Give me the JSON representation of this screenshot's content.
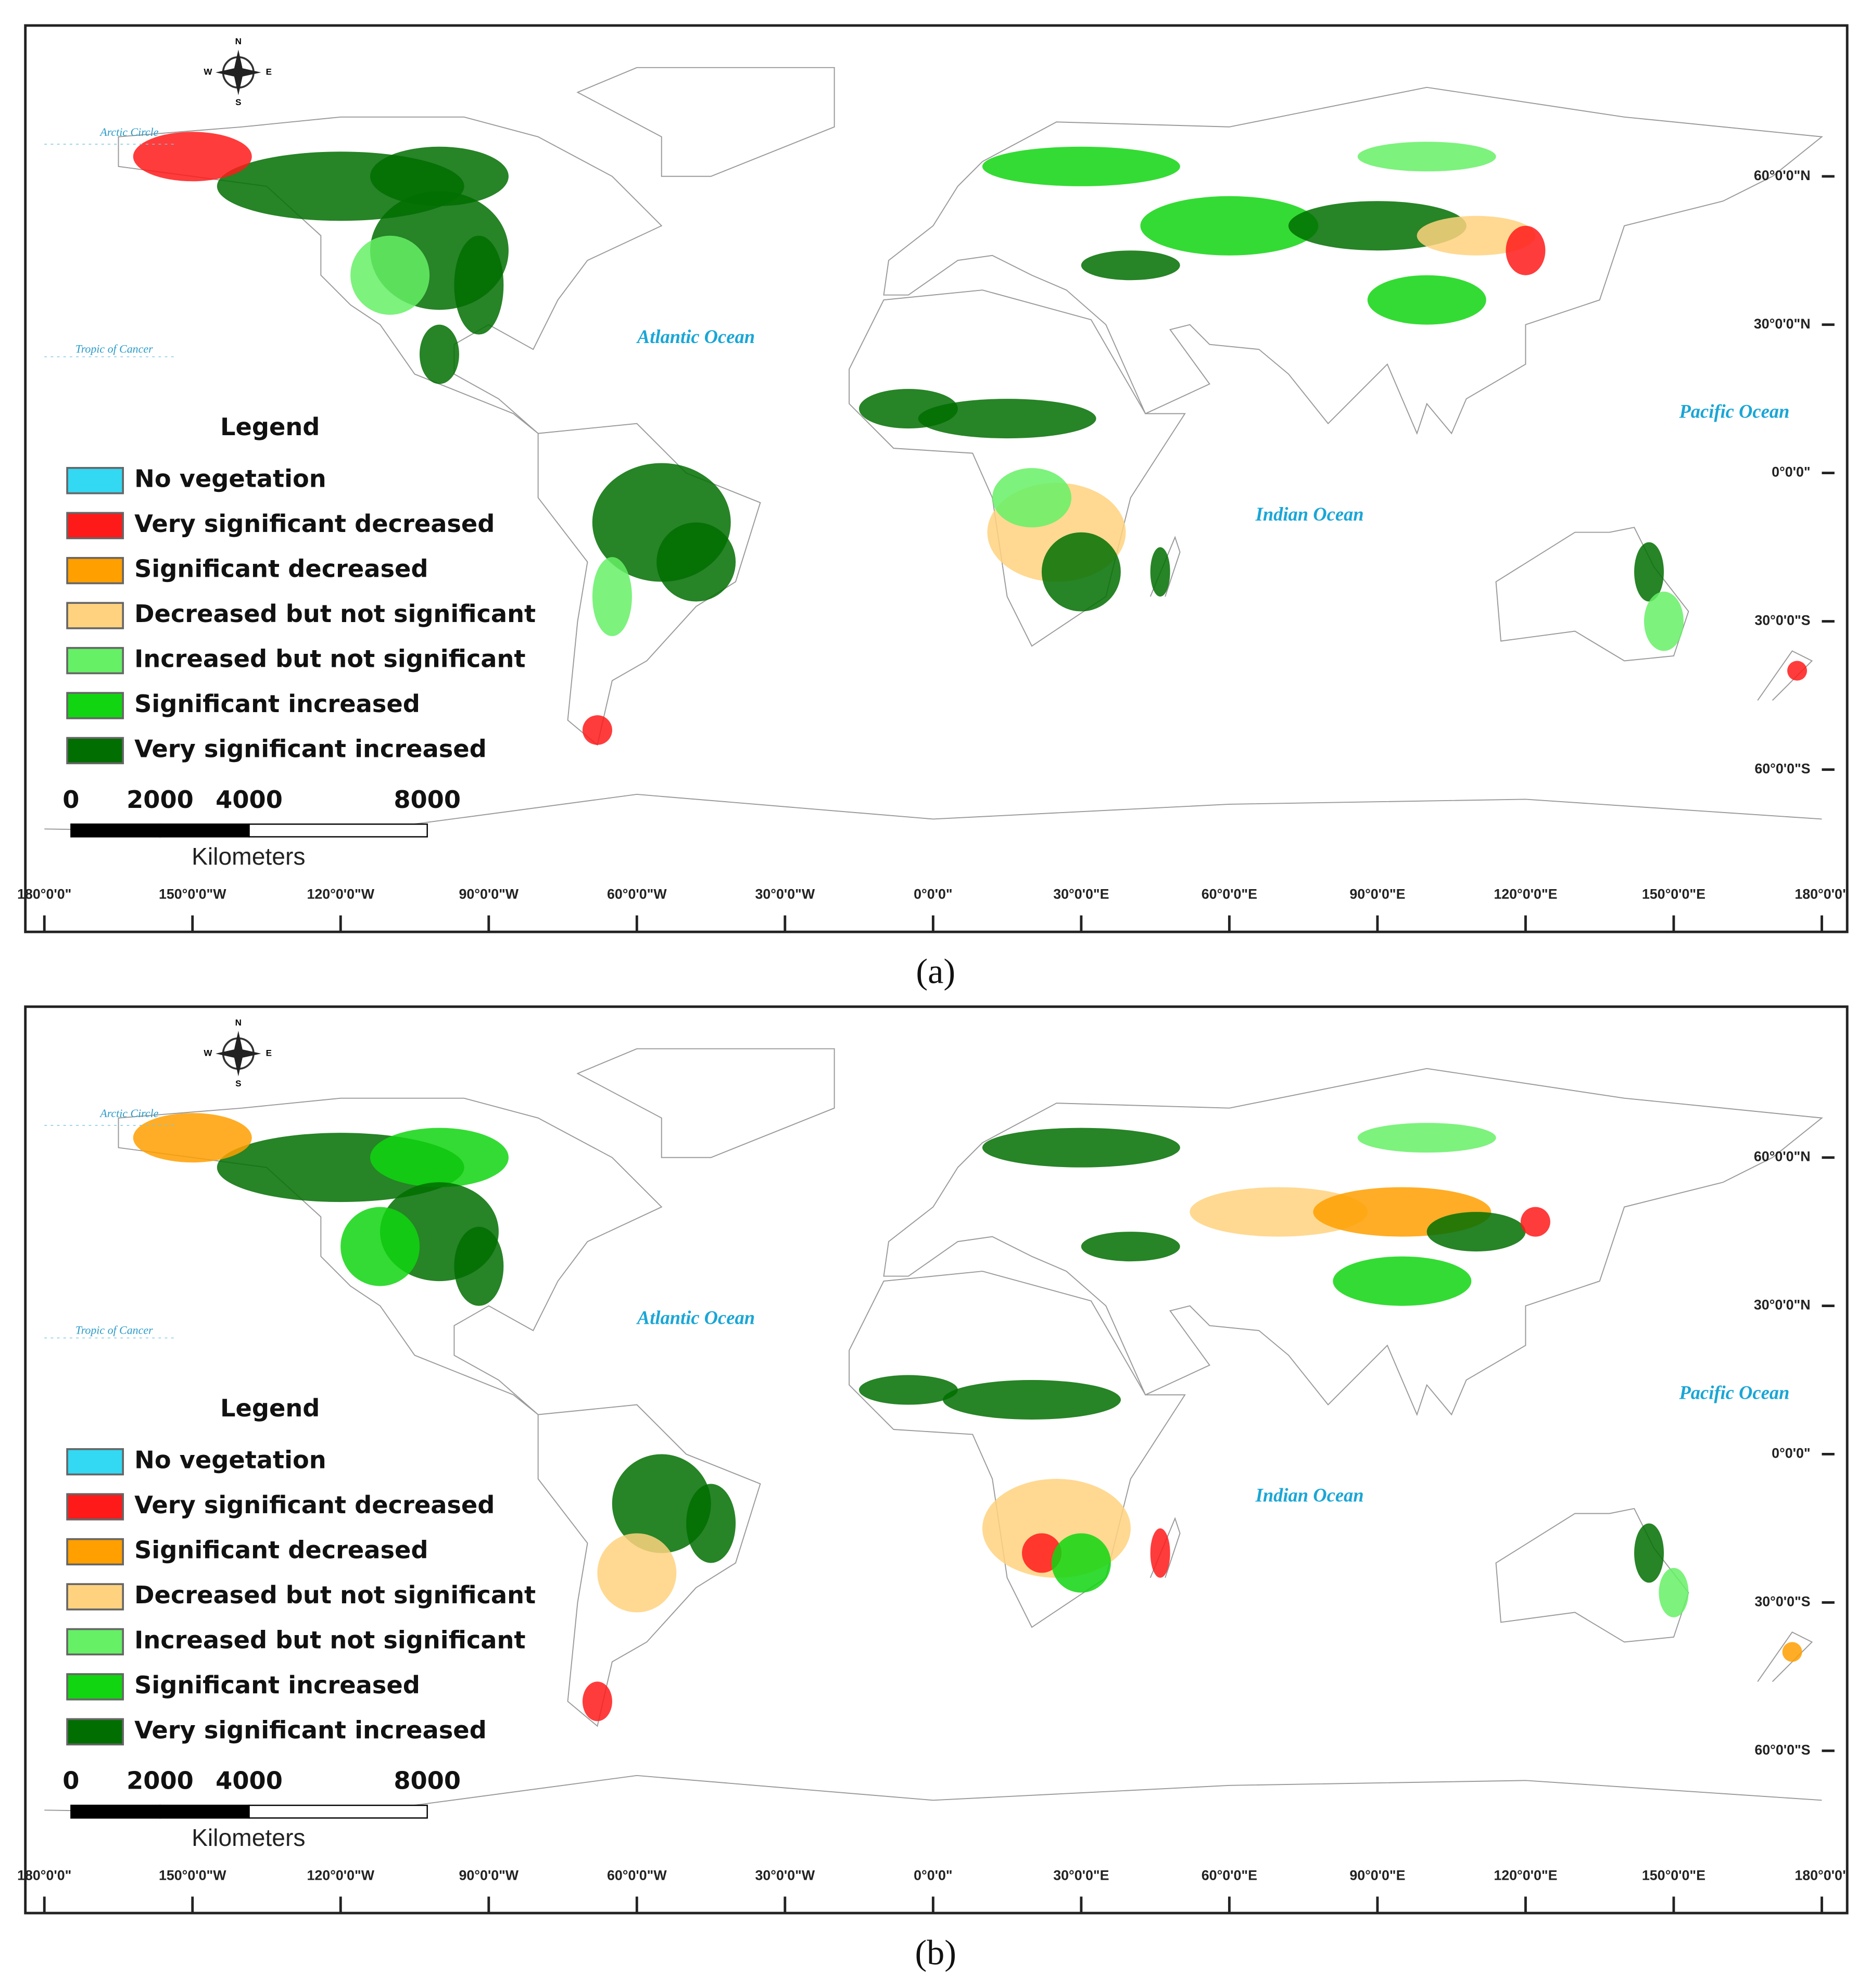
{
  "panels": [
    {
      "caption": "(a)",
      "legend_title": "Legend",
      "legend": [
        {
          "label": "No vegetation",
          "color": "#33d8f3"
        },
        {
          "label": "Very significant decreased",
          "color": "#ff1a1a"
        },
        {
          "label": "Significant decreased",
          "color": "#ff9f00"
        },
        {
          "label": "Decreased but not significant",
          "color": "#ffd27f"
        },
        {
          "label": "Increased but not significant",
          "color": "#66f066"
        },
        {
          "label": "Significant increased",
          "color": "#11d511"
        },
        {
          "label": "Very significant increased",
          "color": "#016e01"
        }
      ],
      "scale": {
        "ticks": [
          0,
          2000,
          4000,
          8000
        ],
        "unit": "Kilometers"
      },
      "compass": [
        "N",
        "E",
        "S",
        "W"
      ],
      "oceans": [
        "Atlantic Ocean",
        "Pacific Ocean",
        "Indian Ocean"
      ],
      "circles": [
        "Arctic Circle",
        "Tropic of Cancer"
      ],
      "lat_ticks": [
        {
          "value": 60,
          "label": "60°0'0\"N"
        },
        {
          "value": 30,
          "label": "30°0'0\"N"
        },
        {
          "value": 0,
          "label": "0°0'0\""
        },
        {
          "value": -30,
          "label": "30°0'0\"S"
        },
        {
          "value": -60,
          "label": "60°0'0\"S"
        }
      ],
      "lon_ticks": [
        {
          "value": -180,
          "label": "180°0'0\""
        },
        {
          "value": -150,
          "label": "150°0'0\"W"
        },
        {
          "value": -120,
          "label": "120°0'0\"W"
        },
        {
          "value": -90,
          "label": "90°0'0\"W"
        },
        {
          "value": -60,
          "label": "60°0'0\"W"
        },
        {
          "value": -30,
          "label": "30°0'0\"W"
        },
        {
          "value": 0,
          "label": "0°0'0\""
        },
        {
          "value": 30,
          "label": "30°0'0\"E"
        },
        {
          "value": 60,
          "label": "60°0'0\"E"
        },
        {
          "value": 90,
          "label": "90°0'0\"E"
        },
        {
          "value": 120,
          "label": "120°0'0\"E"
        },
        {
          "value": 150,
          "label": "150°0'0\"E"
        },
        {
          "value": 180,
          "label": "180°0'0\""
        }
      ]
    },
    {
      "caption": "(b)",
      "legend_title": "Legend",
      "legend": [
        {
          "label": "No vegetation",
          "color": "#33d8f3"
        },
        {
          "label": "Very significant decreased",
          "color": "#ff1a1a"
        },
        {
          "label": "Significant decreased",
          "color": "#ff9f00"
        },
        {
          "label": "Decreased but not significant",
          "color": "#ffd27f"
        },
        {
          "label": "Increased but not significant",
          "color": "#66f066"
        },
        {
          "label": "Significant increased",
          "color": "#11d511"
        },
        {
          "label": "Very significant increased",
          "color": "#016e01"
        }
      ],
      "scale": {
        "ticks": [
          0,
          2000,
          4000,
          8000
        ],
        "unit": "Kilometers"
      },
      "compass": [
        "N",
        "E",
        "S",
        "W"
      ],
      "oceans": [
        "Atlantic Ocean",
        "Pacific Ocean",
        "Indian Ocean"
      ],
      "circles": [
        "Arctic Circle",
        "Tropic of Cancer"
      ],
      "lat_ticks": [
        {
          "value": 60,
          "label": "60°0'0\"N"
        },
        {
          "value": 30,
          "label": "30°0'0\"N"
        },
        {
          "value": 0,
          "label": "0°0'0\""
        },
        {
          "value": -30,
          "label": "30°0'0\"S"
        },
        {
          "value": -60,
          "label": "60°0'0\"S"
        }
      ],
      "lon_ticks": [
        {
          "value": -180,
          "label": "180°0'0\""
        },
        {
          "value": -150,
          "label": "150°0'0\"W"
        },
        {
          "value": -120,
          "label": "120°0'0\"W"
        },
        {
          "value": -90,
          "label": "90°0'0\"W"
        },
        {
          "value": -60,
          "label": "60°0'0\"W"
        },
        {
          "value": -30,
          "label": "30°0'0\"W"
        },
        {
          "value": 0,
          "label": "0°0'0\""
        },
        {
          "value": 30,
          "label": "30°0'0\"E"
        },
        {
          "value": 60,
          "label": "60°0'0\"E"
        },
        {
          "value": 90,
          "label": "90°0'0\"E"
        },
        {
          "value": 120,
          "label": "120°0'0\"E"
        },
        {
          "value": 150,
          "label": "150°0'0\"E"
        },
        {
          "value": 180,
          "label": "180°0'0\""
        }
      ]
    }
  ]
}
